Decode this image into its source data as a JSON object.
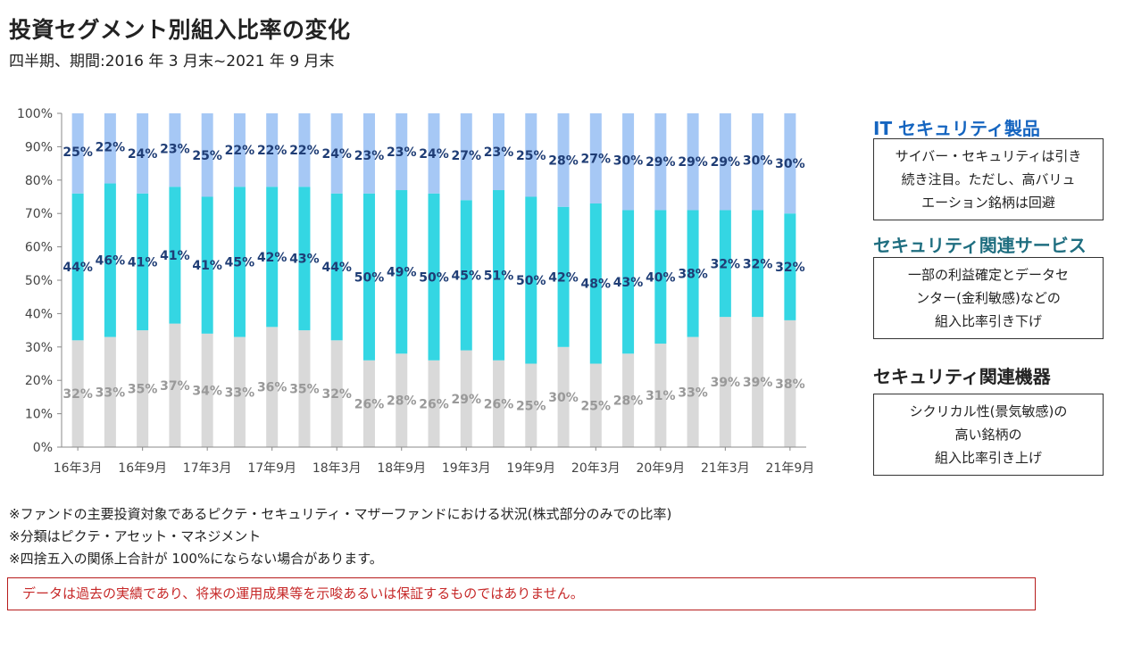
{
  "title": "投資セグメント別組入比率の変化",
  "subtitle": "四半期、期間:2016 年 3 月末~2021 年 9 月末",
  "colors": {
    "it": "#a6c8f5",
    "services": "#34d6e3",
    "devices": "#d9d9d9",
    "it_head": "#1565c0",
    "services_head": "#1f6e80",
    "devices_head": "#222222"
  },
  "chart_data": {
    "type": "bar",
    "stacked": true,
    "ylim": [
      0,
      100
    ],
    "yticks": [
      "0%",
      "10%",
      "20%",
      "30%",
      "40%",
      "50%",
      "60%",
      "70%",
      "80%",
      "90%",
      "100%"
    ],
    "x_tick_labels": [
      "16年3月",
      "16年9月",
      "17年3月",
      "17年9月",
      "18年3月",
      "18年9月",
      "19年3月",
      "19年9月",
      "20年3月",
      "20年9月",
      "21年3月",
      "21年9月"
    ],
    "series": [
      {
        "key": "devices",
        "values": [
          32,
          33,
          35,
          37,
          34,
          33,
          36,
          35,
          32,
          26,
          28,
          26,
          29,
          26,
          25,
          30,
          25,
          28,
          31,
          33,
          39,
          39,
          38
        ]
      },
      {
        "key": "services",
        "values": [
          44,
          46,
          41,
          41,
          41,
          45,
          42,
          43,
          44,
          50,
          49,
          50,
          45,
          51,
          50,
          42,
          48,
          43,
          40,
          38,
          32,
          32,
          32
        ]
      },
      {
        "key": "it",
        "values": [
          25,
          22,
          24,
          23,
          25,
          22,
          22,
          22,
          24,
          23,
          23,
          24,
          27,
          23,
          25,
          28,
          27,
          30,
          29,
          29,
          29,
          30,
          30
        ]
      }
    ]
  },
  "segments": {
    "it": {
      "name": "IT セキュリティ製品",
      "lines": [
        "サイバー・セキュリティは引き",
        "続き注目。ただし、高バリュ",
        "エーション銘柄は回避"
      ]
    },
    "services": {
      "name": "セキュリティ関連サービス",
      "lines": [
        "一部の利益確定とデータセ",
        "ンター(金利敏感)などの",
        "組入比率引き下げ"
      ]
    },
    "devices": {
      "name": "セキュリティ関連機器",
      "lines": [
        "シクリカル性(景気敏感)の",
        "高い銘柄の",
        "組入比率引き上げ"
      ]
    }
  },
  "notes": [
    "※ファンドの主要投資対象であるピクテ・セキュリティ・マザーファンドにおける状況(株式部分のみでの比率)",
    "※分類はピクテ・アセット・マネジメント",
    "※四捨五入の関係上合計が 100%にならない場合があります。"
  ],
  "disclaimer": "データは過去の実績であり、将来の運用成果等を示唆あるいは保証するものではありません。"
}
